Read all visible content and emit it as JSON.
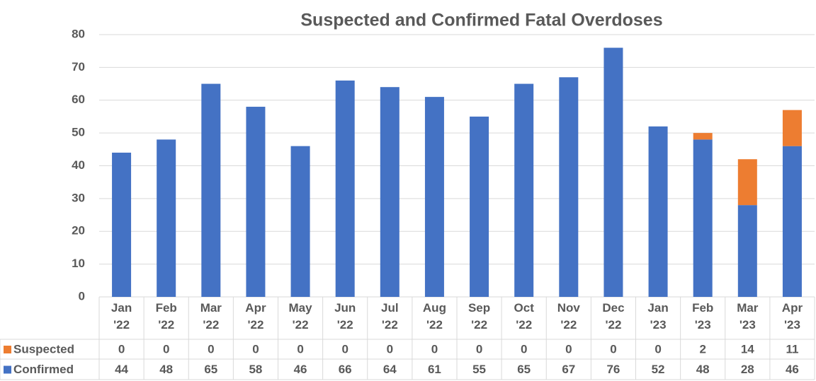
{
  "chart_data": {
    "type": "bar",
    "stacked": true,
    "title": "Suspected and Confirmed Fatal Overdoses",
    "categories": [
      "Jan '22",
      "Feb '22",
      "Mar '22",
      "Apr '22",
      "May '22",
      "Jun '22",
      "Jul '22",
      "Aug '22",
      "Sep '22",
      "Oct '22",
      "Nov '22",
      "Dec '22",
      "Jan '23",
      "Feb '23",
      "Mar '23",
      "Apr '23"
    ],
    "series": [
      {
        "name": "Confirmed",
        "color": "#4472c4",
        "values": [
          44,
          48,
          65,
          58,
          46,
          66,
          64,
          61,
          55,
          65,
          67,
          76,
          52,
          48,
          28,
          46
        ]
      },
      {
        "name": "Suspected",
        "color": "#ed7d31",
        "values": [
          0,
          0,
          0,
          0,
          0,
          0,
          0,
          0,
          0,
          0,
          0,
          0,
          0,
          2,
          14,
          11
        ]
      }
    ],
    "ylim": [
      0,
      80
    ],
    "yticks": [
      0,
      10,
      20,
      30,
      40,
      50,
      60,
      70,
      80
    ],
    "grid": true,
    "data_table": true
  }
}
